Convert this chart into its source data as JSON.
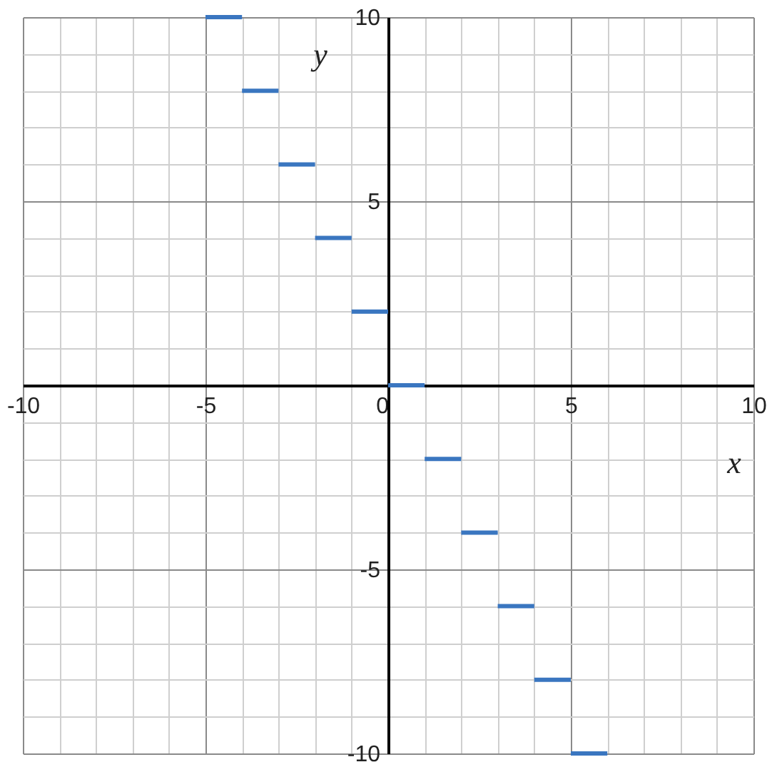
{
  "chart_data": {
    "type": "line",
    "xlabel": "x",
    "ylabel": "y",
    "xlim": [
      -10,
      10
    ],
    "ylim": [
      -10,
      10
    ],
    "xticks": [
      -10,
      {
        "value": -9,
        "label": null
      },
      {
        "value": -8,
        "label": null
      },
      {
        "value": -7,
        "label": null
      },
      {
        "value": -6,
        "label": null
      },
      -5,
      {
        "value": -4,
        "label": null
      },
      {
        "value": -3,
        "label": null
      },
      {
        "value": -2,
        "label": null
      },
      {
        "value": -1,
        "label": null
      },
      0,
      {
        "value": 1,
        "label": null
      },
      {
        "value": 2,
        "label": null
      },
      {
        "value": 3,
        "label": null
      },
      {
        "value": 4,
        "label": null
      },
      5,
      {
        "value": 6,
        "label": null
      },
      {
        "value": 7,
        "label": null
      },
      {
        "value": 8,
        "label": null
      },
      {
        "value": 9,
        "label": null
      },
      10
    ],
    "yticks": [
      -10,
      {
        "value": -9,
        "label": null
      },
      {
        "value": -8,
        "label": null
      },
      {
        "value": -7,
        "label": null
      },
      {
        "value": -6,
        "label": null
      },
      -5,
      {
        "value": -4,
        "label": null
      },
      {
        "value": -3,
        "label": null
      },
      {
        "value": -2,
        "label": null
      },
      {
        "value": -1,
        "label": null
      },
      {
        "value": 0,
        "label": null
      },
      {
        "value": 1,
        "label": null
      },
      {
        "value": 2,
        "label": null
      },
      {
        "value": 3,
        "label": null
      },
      {
        "value": 4,
        "label": null
      },
      5,
      {
        "value": 6,
        "label": null
      },
      {
        "value": 7,
        "label": null
      },
      {
        "value": 8,
        "label": null
      },
      {
        "value": 9,
        "label": null
      },
      10
    ],
    "grid": true,
    "series": [
      {
        "color": "#3a76c0",
        "x": [
          -5,
          -4
        ],
        "values": [
          10,
          10
        ]
      },
      {
        "color": "#3a76c0",
        "x": [
          -4,
          -3
        ],
        "values": [
          8,
          8
        ]
      },
      {
        "color": "#3a76c0",
        "x": [
          -3,
          -2
        ],
        "values": [
          6,
          6
        ]
      },
      {
        "color": "#3a76c0",
        "x": [
          -2,
          -1
        ],
        "values": [
          4,
          4
        ]
      },
      {
        "color": "#3a76c0",
        "x": [
          -1,
          0
        ],
        "values": [
          2,
          2
        ]
      },
      {
        "color": "#3a76c0",
        "x": [
          0,
          1
        ],
        "values": [
          0,
          0
        ]
      },
      {
        "color": "#3a76c0",
        "x": [
          1,
          2
        ],
        "values": [
          -2,
          -2
        ]
      },
      {
        "color": "#3a76c0",
        "x": [
          2,
          3
        ],
        "values": [
          -4,
          -4
        ]
      },
      {
        "color": "#3a76c0",
        "x": [
          3,
          4
        ],
        "values": [
          -6,
          -6
        ]
      },
      {
        "color": "#3a76c0",
        "x": [
          4,
          5
        ],
        "values": [
          -8,
          -8
        ]
      },
      {
        "color": "#3a76c0",
        "x": [
          5,
          6
        ],
        "values": [
          -10,
          -10
        ]
      }
    ]
  }
}
